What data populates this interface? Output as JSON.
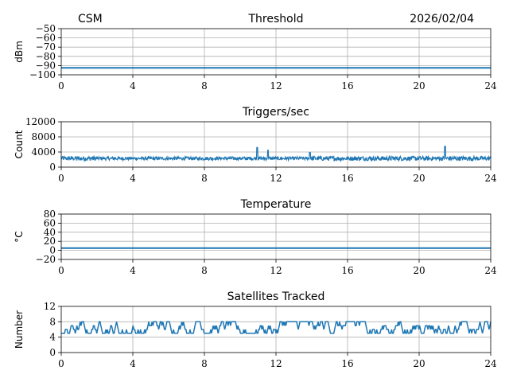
{
  "header": {
    "left": "CSM",
    "center": "Threshold",
    "right": "2026/02/04"
  },
  "colors": {
    "line": "#1f77b4",
    "grid": "#b0b0b0",
    "axis": "#000000"
  },
  "chart_data": [
    {
      "type": "line",
      "title": "Threshold",
      "ylabel": "dBm",
      "xlim": [
        0,
        24
      ],
      "ylim": [
        -100,
        -50
      ],
      "xticks": [
        0,
        4,
        8,
        12,
        16,
        20,
        24
      ],
      "yticks": [
        -100,
        -90,
        -80,
        -70,
        -60,
        -50
      ],
      "xticklabels": [
        "0",
        "4",
        "8",
        "12",
        "16",
        "20",
        "24"
      ],
      "yticklabels": [
        "−100",
        "−90",
        "−80",
        "−70",
        "−60",
        "−50"
      ],
      "grid": true,
      "pattern": "flat",
      "baseline": -92.5,
      "x": [
        0,
        24
      ],
      "y": [
        -92.5,
        -92.5
      ]
    },
    {
      "type": "line",
      "title": "Triggers/sec",
      "ylabel": "Count",
      "xlim": [
        0,
        24
      ],
      "ylim": [
        0,
        12000
      ],
      "xticks": [
        0,
        4,
        8,
        12,
        16,
        20,
        24
      ],
      "yticks": [
        0,
        4000,
        8000,
        12000
      ],
      "xticklabels": [
        "0",
        "4",
        "8",
        "12",
        "16",
        "20",
        "24"
      ],
      "yticklabels": [
        "0",
        "4000",
        "8000",
        "12000"
      ],
      "grid": true,
      "pattern": "noise",
      "baseline": 2300,
      "spread": 1200,
      "spikes": [
        {
          "x": 10.95,
          "y": 5200
        },
        {
          "x": 11.55,
          "y": 4500
        },
        {
          "x": 13.9,
          "y": 3900
        },
        {
          "x": 21.45,
          "y": 5500
        }
      ]
    },
    {
      "type": "line",
      "title": "Temperature",
      "ylabel": "°C",
      "xlim": [
        0,
        24
      ],
      "ylim": [
        -20,
        80
      ],
      "xticks": [
        0,
        4,
        8,
        12,
        16,
        20,
        24
      ],
      "yticks": [
        -20,
        0,
        20,
        40,
        60,
        80
      ],
      "xticklabels": [
        "0",
        "4",
        "8",
        "12",
        "16",
        "20",
        "24"
      ],
      "yticklabels": [
        "−20",
        "0",
        "20",
        "40",
        "60",
        "80"
      ],
      "grid": true,
      "pattern": "flat",
      "baseline": 5,
      "x": [
        0,
        24
      ],
      "y": [
        5,
        5
      ]
    },
    {
      "type": "line",
      "title": "Satellites Tracked",
      "ylabel": "Number",
      "xlim": [
        0,
        24
      ],
      "ylim": [
        0,
        12
      ],
      "xticks": [
        0,
        4,
        8,
        12,
        16,
        20,
        24
      ],
      "yticks": [
        0,
        4,
        8,
        12
      ],
      "xticklabels": [
        "0",
        "4",
        "8",
        "12",
        "16",
        "20",
        "24"
      ],
      "yticklabels": [
        "0",
        "4",
        "8",
        "12"
      ],
      "grid": true,
      "pattern": "steps",
      "baseline": 6,
      "spread": 3,
      "range": [
        2,
        9
      ]
    }
  ]
}
